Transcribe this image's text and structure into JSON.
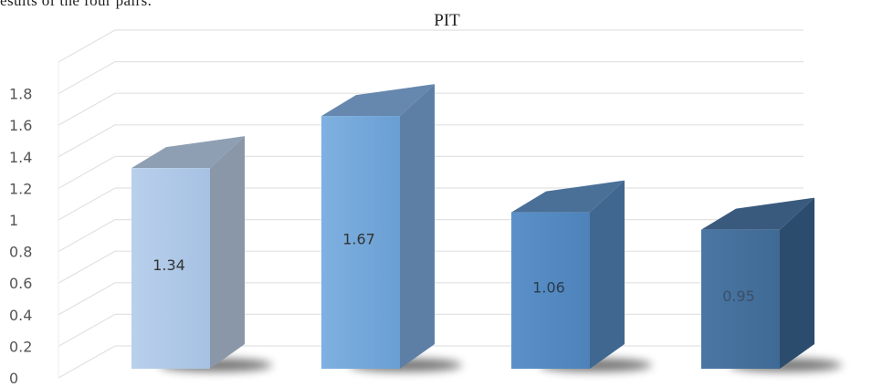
{
  "page": {
    "caption_fragment": "esults of the four pairs."
  },
  "chart_data": {
    "type": "bar",
    "title": "PIT",
    "categories": [
      "",
      "",
      "",
      ""
    ],
    "values": [
      1.34,
      1.67,
      1.06,
      0.95
    ],
    "data_labels": [
      "1.34",
      "1.67",
      "1.06",
      "0.95"
    ],
    "y_ticks": [
      "0",
      "0.2",
      "0.4",
      "0.6",
      "0.8",
      "1",
      "1.2",
      "1.4",
      "1.6",
      "1.8"
    ],
    "ylim": [
      0,
      2
    ],
    "xlabel": "",
    "ylabel": "",
    "grid": true,
    "legend": "none",
    "style": "3d-column",
    "bar_colors": [
      {
        "front": "#b9d0ec",
        "front_dark": "#a6c1e3",
        "side": "#8a97a8",
        "top": "#8f9fb3",
        "label": "#333333"
      },
      {
        "front": "#7fb0e0",
        "front_dark": "#6a9fd3",
        "side": "#5d7fa6",
        "top": "#6687ae",
        "label": "#333333"
      },
      {
        "front": "#5b91c8",
        "front_dark": "#4d82ba",
        "side": "#3f6790",
        "top": "#4a7098",
        "label": "#2a3b4d"
      },
      {
        "front": "#4a76a3",
        "front_dark": "#3f6a96",
        "side": "#2c4c6e",
        "top": "#3a5a7d",
        "label": "#3a4f66"
      }
    ]
  }
}
